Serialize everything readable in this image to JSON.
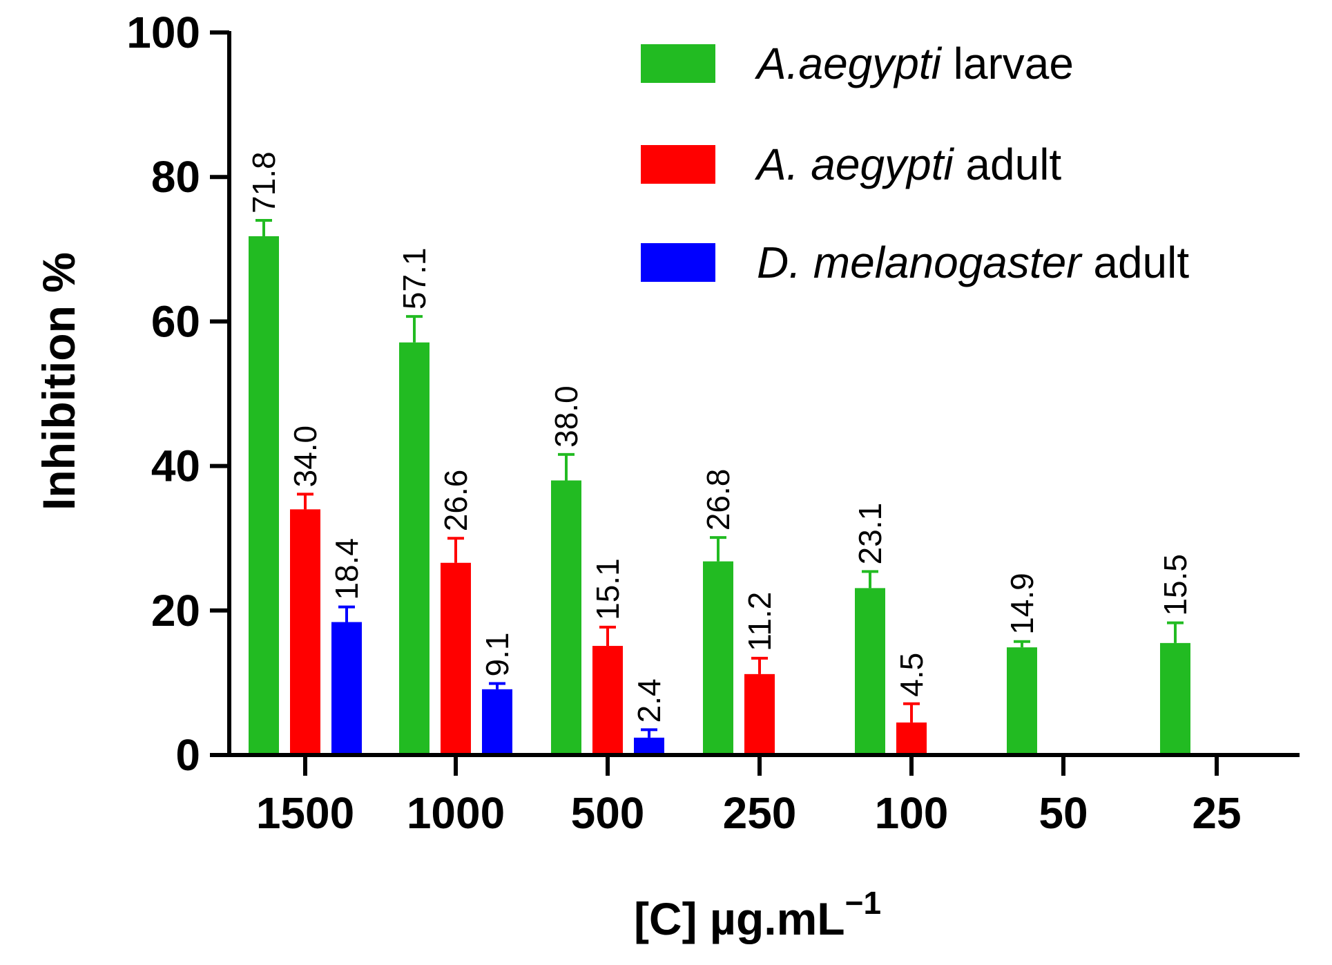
{
  "chart_data": {
    "type": "bar",
    "title": "",
    "xlabel": "[C] µg.mL",
    "xlabel_superscript": "−1",
    "ylabel": "Inhibition %",
    "ylim": [
      0,
      100
    ],
    "yticks": [
      0,
      20,
      40,
      60,
      80,
      100
    ],
    "categories": [
      "1500",
      "1000",
      "500",
      "250",
      "100",
      "50",
      "25"
    ],
    "legend_position": "top-right",
    "series": [
      {
        "name": "A.aegypti larvae",
        "name_italic": "A.aegypti",
        "name_rest": " larvae",
        "color": "#22bb22",
        "values": [
          71.8,
          57.1,
          38.0,
          26.8,
          23.1,
          14.9,
          15.5
        ],
        "errors": [
          2.2,
          3.6,
          3.6,
          3.3,
          2.3,
          0.8,
          2.8
        ],
        "labels": [
          "71.8",
          "57.1",
          "38.0",
          "26.8",
          "23.1",
          "14.9",
          "15.5"
        ]
      },
      {
        "name": "A. aegypti adult",
        "name_italic": "A.  aegypti",
        "name_rest": " adult",
        "color": "#ff0000",
        "values": [
          34.0,
          26.6,
          15.1,
          11.2,
          4.5,
          null,
          null
        ],
        "errors": [
          2.1,
          3.4,
          2.6,
          2.2,
          2.6,
          null,
          null
        ],
        "labels": [
          "34.0",
          "26.6",
          "15.1",
          "11.2",
          "4.5",
          "",
          ""
        ]
      },
      {
        "name": "D. melanogaster adult",
        "name_italic": "D.  melanogaster",
        "name_rest": " adult",
        "color": "#0000ff",
        "values": [
          18.4,
          9.1,
          2.4,
          null,
          null,
          null,
          null
        ],
        "errors": [
          2.1,
          0.8,
          1.1,
          null,
          null,
          null,
          null
        ],
        "labels": [
          "18.4",
          "9.1",
          "2.4",
          "",
          "",
          "",
          ""
        ]
      }
    ]
  }
}
